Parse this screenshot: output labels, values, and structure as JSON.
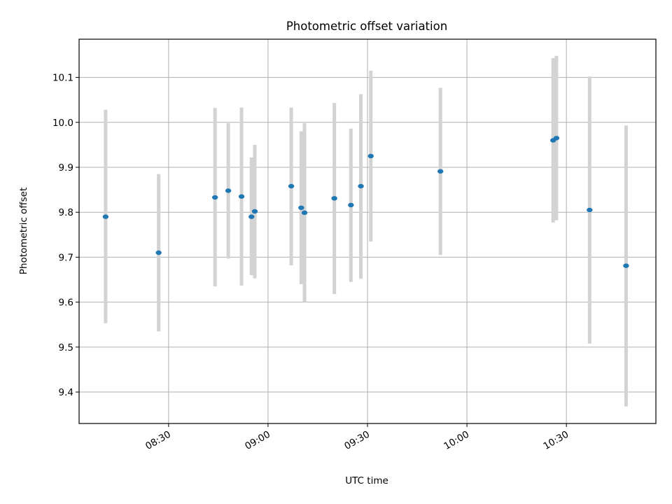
{
  "chart_data": {
    "type": "scatter",
    "title": "Photometric offset variation",
    "xlabel": "UTC time",
    "ylabel": "Photometric offset",
    "x_axis_type": "time",
    "xlim": [
      "08:03",
      "10:57"
    ],
    "ylim": [
      9.33,
      10.185
    ],
    "xticks": [
      "08:30",
      "09:00",
      "09:30",
      "10:00",
      "10:30"
    ],
    "yticks": [
      9.4,
      9.5,
      9.6,
      9.7,
      9.8,
      9.9,
      10.0,
      10.1
    ],
    "grid": true,
    "point_color": "#1f77b4",
    "errorbar_color": "#d3d3d3",
    "points": [
      {
        "x": "08:11",
        "y": 9.79,
        "yerr_low": 9.553,
        "yerr_high": 10.028
      },
      {
        "x": "08:27",
        "y": 9.71,
        "yerr_low": 9.535,
        "yerr_high": 9.885
      },
      {
        "x": "08:44",
        "y": 9.833,
        "yerr_low": 9.635,
        "yerr_high": 10.032
      },
      {
        "x": "08:48",
        "y": 9.848,
        "yerr_low": 9.697,
        "yerr_high": 9.998
      },
      {
        "x": "08:52",
        "y": 9.835,
        "yerr_low": 9.637,
        "yerr_high": 10.033
      },
      {
        "x": "08:55",
        "y": 9.79,
        "yerr_low": 9.66,
        "yerr_high": 9.922
      },
      {
        "x": "08:56",
        "y": 9.802,
        "yerr_low": 9.653,
        "yerr_high": 9.95
      },
      {
        "x": "09:07",
        "y": 9.858,
        "yerr_low": 9.682,
        "yerr_high": 10.033
      },
      {
        "x": "09:10",
        "y": 9.81,
        "yerr_low": 9.64,
        "yerr_high": 9.98
      },
      {
        "x": "09:11",
        "y": 9.799,
        "yerr_low": 9.6,
        "yerr_high": 9.998
      },
      {
        "x": "09:20",
        "y": 9.831,
        "yerr_low": 9.618,
        "yerr_high": 10.043
      },
      {
        "x": "09:25",
        "y": 9.816,
        "yerr_low": 9.645,
        "yerr_high": 9.986
      },
      {
        "x": "09:28",
        "y": 9.858,
        "yerr_low": 9.652,
        "yerr_high": 10.063
      },
      {
        "x": "09:31",
        "y": 9.925,
        "yerr_low": 9.735,
        "yerr_high": 10.115
      },
      {
        "x": "09:52",
        "y": 9.891,
        "yerr_low": 9.705,
        "yerr_high": 10.077
      },
      {
        "x": "10:26",
        "y": 9.96,
        "yerr_low": 9.777,
        "yerr_high": 10.143
      },
      {
        "x": "10:27",
        "y": 9.965,
        "yerr_low": 9.782,
        "yerr_high": 10.148
      },
      {
        "x": "10:37",
        "y": 9.805,
        "yerr_low": 9.508,
        "yerr_high": 10.102
      },
      {
        "x": "10:48",
        "y": 9.681,
        "yerr_low": 9.368,
        "yerr_high": 9.993
      }
    ]
  }
}
